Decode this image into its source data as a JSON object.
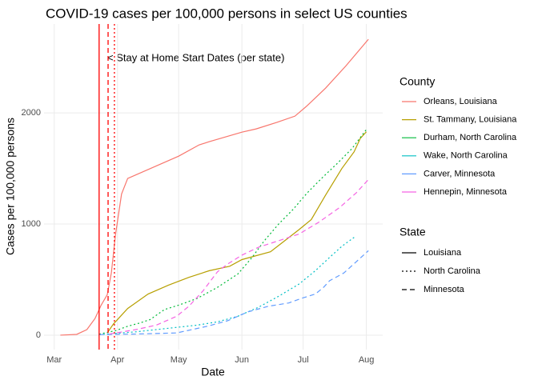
{
  "chart_data": {
    "type": "line",
    "title": "COVID-19 cases per 100,000 persons in select US counties",
    "x_label": "Date",
    "y_label": "Cases per 100,000 persons",
    "annotation": "< Stay at Home Start Dates (per state)",
    "xlim": [
      -5,
      161
    ],
    "ylim": [
      -130,
      2800
    ],
    "xticks": [
      {
        "value": 0,
        "label": "Mar"
      },
      {
        "value": 31,
        "label": "Apr"
      },
      {
        "value": 61,
        "label": "May"
      },
      {
        "value": 92,
        "label": "Jun"
      },
      {
        "value": 122,
        "label": "Jul"
      },
      {
        "value": 153,
        "label": "Aug"
      }
    ],
    "yticks": [
      0,
      1000,
      2000
    ],
    "grid": true,
    "vlines": [
      {
        "x": 22,
        "linetype": "solid",
        "color": "#ff0000"
      },
      {
        "x": 26.4,
        "linetype": "dashed",
        "color": "#ff0000"
      },
      {
        "x": 29.5,
        "linetype": "dotted",
        "color": "#ff0000"
      }
    ],
    "legend_title": "County",
    "linetype_legend_title": "State",
    "linetype_legend": [
      {
        "name": "Louisiana",
        "linetype": "solid"
      },
      {
        "name": "North Carolina",
        "linetype": "dotted"
      },
      {
        "name": "Minnesota",
        "linetype": "dashed"
      }
    ],
    "series": [
      {
        "name": "Orleans, Louisiana",
        "color": "#F8766D",
        "linetype": "solid",
        "x": [
          3,
          11,
          16,
          20,
          23,
          26,
          28,
          30,
          33,
          36,
          61,
          71,
          76,
          92,
          99,
          109,
          118,
          124,
          133,
          143,
          154
        ],
        "values": [
          0,
          7,
          50,
          150,
          270,
          365,
          560,
          900,
          1270,
          1410,
          1611,
          1712,
          1741,
          1827,
          1856,
          1914,
          1971,
          2065,
          2223,
          2424,
          2662
        ]
      },
      {
        "name": "St. Tammany, Louisiana",
        "color": "#B79F00",
        "linetype": "solid",
        "x": [
          26,
          29,
          36,
          46,
          56,
          66,
          76,
          86,
          92,
          106,
          113,
          120,
          126,
          133,
          141,
          147,
          150,
          153
        ],
        "values": [
          20,
          100,
          240,
          370,
          450,
          520,
          580,
          620,
          680,
          750,
          850,
          950,
          1040,
          1260,
          1500,
          1650,
          1770,
          1830
        ]
      },
      {
        "name": "Durham, North Carolina",
        "color": "#00BA38",
        "linetype": "dotted",
        "x": [
          22,
          30,
          36,
          42,
          47,
          54,
          61,
          70,
          80,
          90,
          97,
          103,
          110,
          117,
          124,
          131,
          139,
          146,
          153
        ],
        "values": [
          10,
          40,
          80,
          110,
          140,
          230,
          270,
          330,
          430,
          550,
          700,
          850,
          1000,
          1130,
          1280,
          1410,
          1550,
          1680,
          1850
        ]
      },
      {
        "name": "Wake, North Carolina",
        "color": "#00BFC4",
        "linetype": "dotted",
        "x": [
          22,
          40,
          55,
          70,
          80,
          90,
          100,
          110,
          120,
          128,
          135,
          141,
          147
        ],
        "values": [
          5,
          30,
          60,
          90,
          120,
          170,
          250,
          350,
          460,
          580,
          700,
          800,
          880
        ]
      },
      {
        "name": "Carver, Minnesota",
        "color": "#619CFF",
        "linetype": "dashed",
        "x": [
          22,
          40,
          60,
          75,
          85,
          95,
          105,
          115,
          121,
          128,
          132,
          135,
          142,
          148,
          154
        ],
        "values": [
          5,
          10,
          20,
          80,
          130,
          210,
          260,
          290,
          330,
          370,
          430,
          490,
          560,
          660,
          760
        ]
      },
      {
        "name": "Hennepin, Minnesota",
        "color": "#F564E3",
        "linetype": "dashed",
        "x": [
          27,
          40,
          50,
          60,
          66,
          73,
          80,
          85,
          92,
          100,
          110,
          120,
          130,
          140,
          148,
          154
        ],
        "values": [
          10,
          50,
          90,
          170,
          260,
          400,
          570,
          640,
          720,
          790,
          850,
          910,
          1020,
          1150,
          1280,
          1400
        ]
      }
    ]
  }
}
